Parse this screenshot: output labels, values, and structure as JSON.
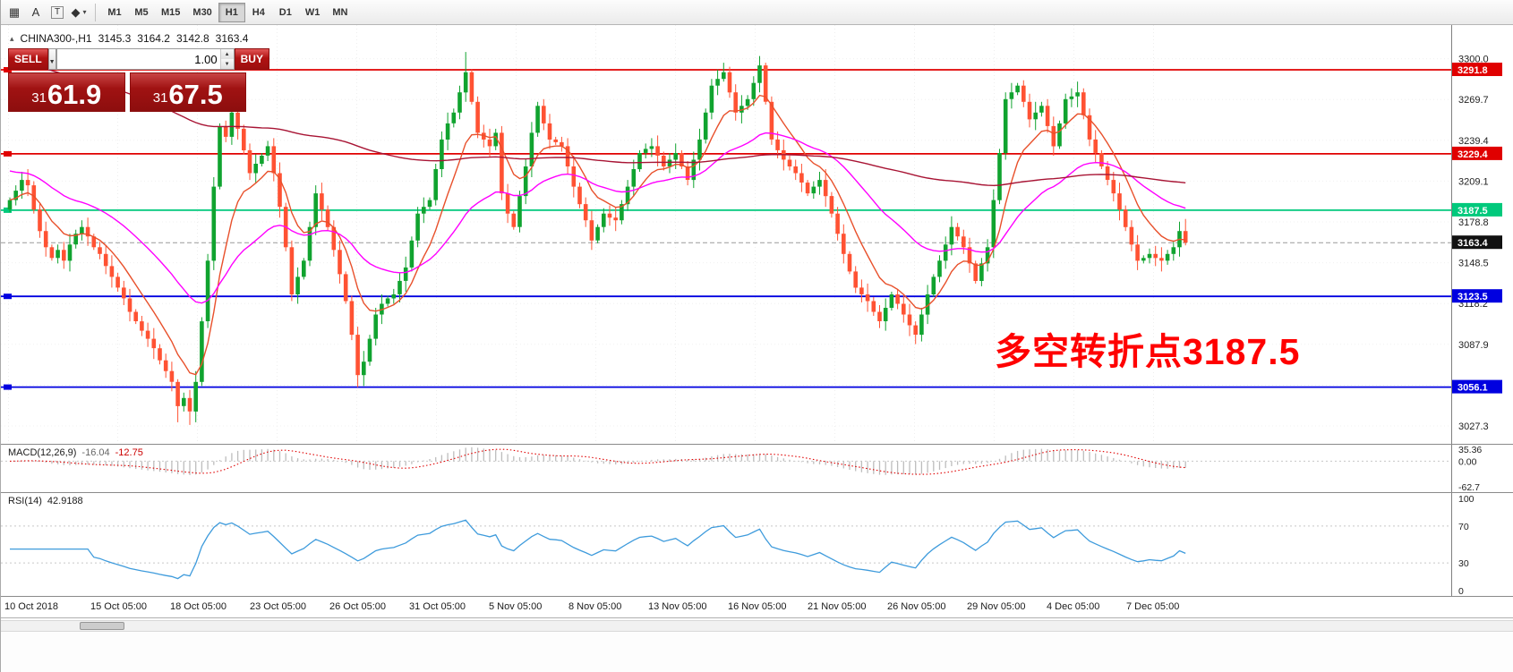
{
  "toolbar": {
    "tools": [
      {
        "id": "grid",
        "glyph": "▦"
      },
      {
        "id": "text-label",
        "glyph": "A"
      },
      {
        "id": "text-box",
        "glyph": "T"
      },
      {
        "id": "shapes",
        "glyph": "◆",
        "dropdown": "▾"
      }
    ],
    "timeframes": [
      {
        "label": "M1"
      },
      {
        "label": "M5"
      },
      {
        "label": "M15"
      },
      {
        "label": "M30"
      },
      {
        "label": "H1",
        "active": true
      },
      {
        "label": "H4"
      },
      {
        "label": "D1"
      },
      {
        "label": "W1"
      },
      {
        "label": "MN"
      }
    ]
  },
  "chart_header": {
    "icon": "▴",
    "symbol": "CHINA300-,H1",
    "open": "3145.3",
    "high": "3164.2",
    "low": "3142.8",
    "close": "3163.4"
  },
  "trade_panel": {
    "sell_label": "SELL",
    "buy_label": "BUY",
    "volume": "1.00",
    "dropdown_glyph": "▼",
    "spin_up_glyph": "▲",
    "spin_down_glyph": "▼",
    "sell_price_full": "3161.9",
    "buy_price_full": "3167.5",
    "sell_price_prefix": "31",
    "sell_price_big": "61.9",
    "buy_price_prefix": "31",
    "buy_price_big": "67.5"
  },
  "annotation": {
    "text": "多空转折点3187.5",
    "color": "#FF0000"
  },
  "price_axis": {
    "ticks": [
      "3300.0",
      "3269.7",
      "3239.4",
      "3209.1",
      "3178.8",
      "3148.5",
      "3118.2",
      "3087.9",
      "3057.6",
      "3027.3"
    ],
    "tick_values": [
      3300.0,
      3269.7,
      3239.4,
      3209.1,
      3178.8,
      3148.5,
      3118.2,
      3087.9,
      3057.6,
      3027.3
    ]
  },
  "levels": [
    {
      "price": 3291.8,
      "label": "3291.8",
      "color": "#E00000"
    },
    {
      "price": 3229.4,
      "label": "3229.4",
      "color": "#E00000"
    },
    {
      "price": 3187.5,
      "label": "3187.5",
      "color": "#00C97C"
    },
    {
      "price": 3123.5,
      "label": "3123.5",
      "color": "#0000E0"
    },
    {
      "price": 3056.1,
      "label": "3056.1",
      "color": "#0000E0"
    }
  ],
  "current_price": {
    "price": 3163.4,
    "label": "3163.4",
    "color": "#111111"
  },
  "chart_data": {
    "type": "candlestick",
    "symbol": "CHINA300",
    "timeframe": "H1",
    "up_color": "#10A32F",
    "down_color": "#FF5233",
    "price_range": [
      3014,
      3325
    ],
    "first_open": 3188,
    "closes": [
      3195,
      3202,
      3210,
      3206,
      3188,
      3172,
      3160,
      3152,
      3158,
      3150,
      3162,
      3170,
      3175,
      3168,
      3160,
      3155,
      3146,
      3138,
      3130,
      3122,
      3112,
      3105,
      3098,
      3092,
      3085,
      3076,
      3068,
      3060,
      3042,
      3048,
      3038,
      3060,
      3105,
      3150,
      3205,
      3250,
      3242,
      3260,
      3248,
      3232,
      3215,
      3222,
      3228,
      3235,
      3215,
      3190,
      3160,
      3125,
      3138,
      3150,
      3175,
      3200,
      3188,
      3175,
      3158,
      3140,
      3120,
      3095,
      3065,
      3075,
      3092,
      3110,
      3118,
      3122,
      3125,
      3135,
      3145,
      3165,
      3185,
      3190,
      3195,
      3218,
      3240,
      3252,
      3260,
      3275,
      3290,
      3268,
      3245,
      3240,
      3235,
      3245,
      3200,
      3185,
      3175,
      3198,
      3220,
      3245,
      3265,
      3252,
      3240,
      3238,
      3235,
      3220,
      3205,
      3192,
      3180,
      3165,
      3175,
      3185,
      3182,
      3180,
      3192,
      3205,
      3218,
      3230,
      3233,
      3235,
      3228,
      3220,
      3225,
      3230,
      3220,
      3210,
      3225,
      3240,
      3260,
      3280,
      3285,
      3290,
      3275,
      3260,
      3265,
      3270,
      3282,
      3295,
      3268,
      3240,
      3232,
      3225,
      3220,
      3215,
      3208,
      3200,
      3205,
      3210,
      3198,
      3185,
      3170,
      3155,
      3142,
      3130,
      3125,
      3120,
      3112,
      3105,
      3115,
      3125,
      3118,
      3110,
      3102,
      3095,
      3110,
      3125,
      3138,
      3150,
      3162,
      3175,
      3168,
      3160,
      3148,
      3135,
      3148,
      3160,
      3195,
      3230,
      3270,
      3275,
      3280,
      3268,
      3255,
      3260,
      3265,
      3250,
      3235,
      3252,
      3270,
      3272,
      3275,
      3258,
      3240,
      3230,
      3220,
      3210,
      3200,
      3188,
      3175,
      3162,
      3150,
      3152,
      3155,
      3152,
      3150,
      3155,
      3160,
      3172,
      3163.4
    ],
    "wick_spikes": {
      "28": {
        "low": 3030
      },
      "30": {
        "low": 3028
      },
      "58": {
        "low": 3056
      },
      "76": {
        "high": 3305
      },
      "119": {
        "high": 3297
      },
      "125": {
        "high": 3302
      },
      "151": {
        "low": 3088
      },
      "196": {
        "high": 3181
      }
    },
    "moving_averages": [
      {
        "name": "fast",
        "period": 9,
        "seed": 3195,
        "color": "#E8502B"
      },
      {
        "name": "medium",
        "period": 32,
        "seed": 3218,
        "color": "#FF00FF"
      },
      {
        "name": "slow",
        "period": 200,
        "seed": 3300,
        "color": "#A81434"
      }
    ]
  },
  "macd_panel": {
    "name": "MACD(12,26,9)",
    "main_value": "-16.04",
    "signal_value": "-12.75",
    "axis_labels": [
      "35.36",
      "0.00",
      "-62.7"
    ],
    "axis_values": [
      35.36,
      0,
      -62.7
    ],
    "histogram_color": "#BDBDBD",
    "signal_color": "#E00000",
    "range": [
      -75,
      40
    ]
  },
  "rsi_panel": {
    "name": "RSI(14)",
    "value": "42.9188",
    "axis_labels": [
      "100",
      "70",
      "30",
      "0"
    ],
    "levels": [
      70,
      30
    ],
    "line_color": "#3E9BDC",
    "range": [
      0,
      100
    ]
  },
  "time_axis": {
    "labels": [
      "10 Oct 2018",
      "15 Oct 05:00",
      "18 Oct 05:00",
      "23 Oct 05:00",
      "26 Oct 05:00",
      "31 Oct 05:00",
      "5 Nov 05:00",
      "8 Nov 05:00",
      "13 Nov 05:00",
      "16 Nov 05:00",
      "21 Nov 05:00",
      "26 Nov 05:00",
      "29 Nov 05:00",
      "4 Dec 05:00",
      "7 Dec 05:00"
    ]
  }
}
